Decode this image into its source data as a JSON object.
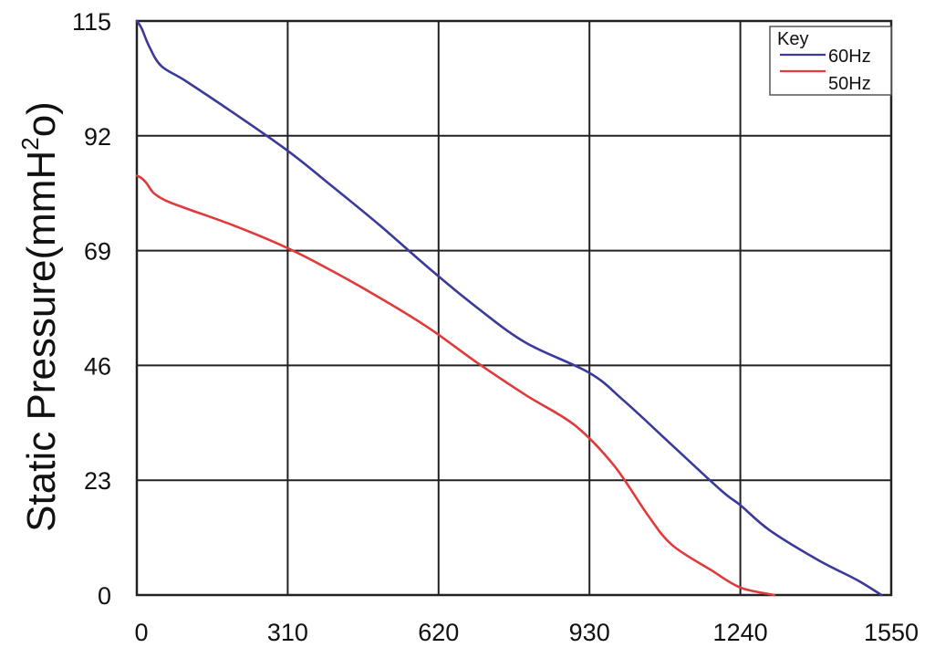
{
  "chart_data": {
    "type": "line",
    "title": "",
    "xlabel": "",
    "ylabel": "Static Pressure(mmH",
    "ylabel_sup": "2",
    "ylabel_tail": "o)",
    "xlim": [
      0,
      1550
    ],
    "ylim": [
      0,
      115
    ],
    "x_ticks": [
      0,
      310,
      620,
      930,
      1240,
      1550
    ],
    "y_ticks": [
      0,
      23,
      46,
      69,
      92,
      115
    ],
    "grid": true,
    "legend": {
      "title": "Key",
      "placement": "top-right"
    },
    "series": [
      {
        "name": "60Hz",
        "color": "#3a3a9c",
        "points": [
          [
            0,
            115
          ],
          [
            10,
            113.5
          ],
          [
            25,
            110
          ],
          [
            50,
            106
          ],
          [
            100,
            103
          ],
          [
            200,
            96.5
          ],
          [
            310,
            89
          ],
          [
            400,
            82
          ],
          [
            500,
            74
          ],
          [
            600,
            65.5
          ],
          [
            700,
            57.5
          ],
          [
            800,
            50.5
          ],
          [
            930,
            44.5
          ],
          [
            1000,
            39
          ],
          [
            1100,
            30
          ],
          [
            1200,
            21
          ],
          [
            1240,
            18
          ],
          [
            1300,
            13
          ],
          [
            1400,
            7
          ],
          [
            1480,
            3
          ],
          [
            1530,
            0
          ]
        ]
      },
      {
        "name": "50Hz",
        "color": "#e03a3a",
        "points": [
          [
            0,
            84
          ],
          [
            10,
            83.5
          ],
          [
            20,
            82.5
          ],
          [
            35,
            80.5
          ],
          [
            60,
            79
          ],
          [
            100,
            77.5
          ],
          [
            200,
            74
          ],
          [
            310,
            69.5
          ],
          [
            400,
            65
          ],
          [
            500,
            59.5
          ],
          [
            600,
            53.5
          ],
          [
            700,
            46.5
          ],
          [
            800,
            40
          ],
          [
            900,
            34
          ],
          [
            980,
            26
          ],
          [
            1050,
            16
          ],
          [
            1100,
            10
          ],
          [
            1180,
            5
          ],
          [
            1240,
            1.5
          ],
          [
            1310,
            0
          ]
        ]
      }
    ]
  }
}
